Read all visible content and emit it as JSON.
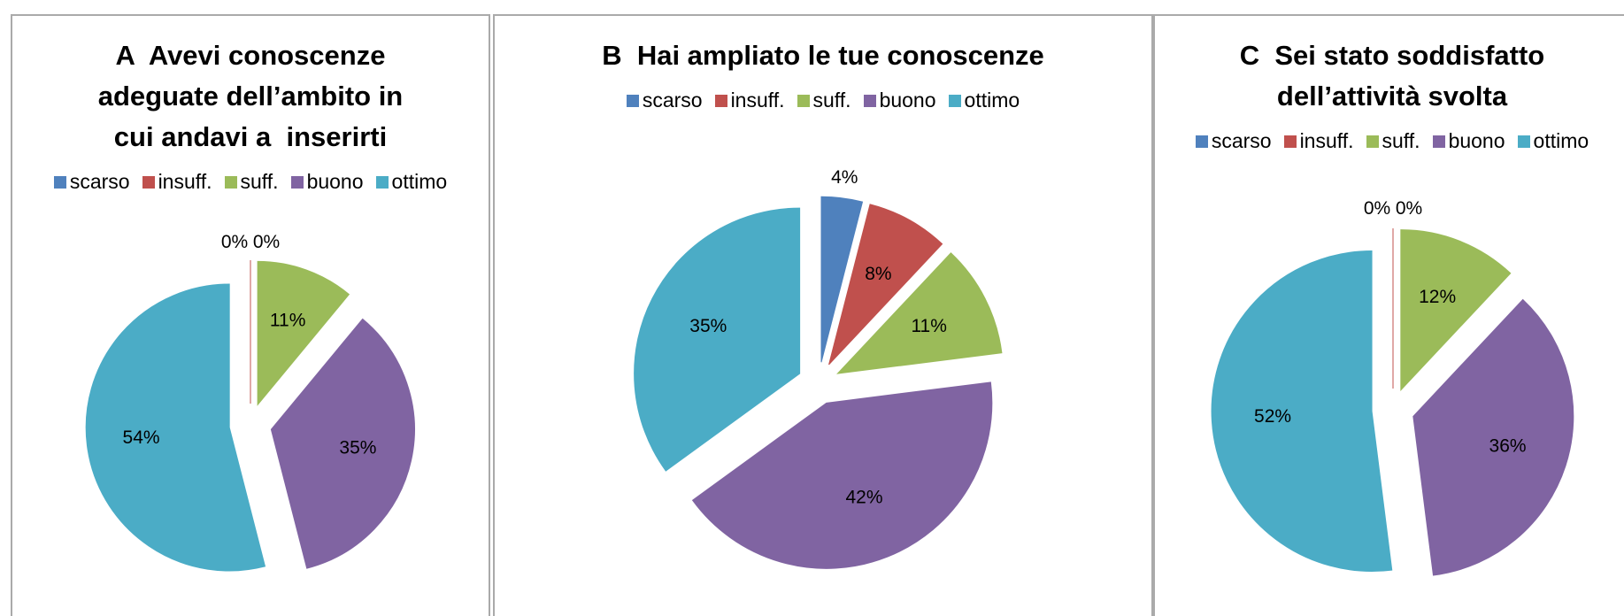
{
  "chart_data": [
    {
      "type": "pie",
      "title": "A  Avevi conoscenze adeguate dell’ambito in cui andavi a  inserirti",
      "categories": [
        "scarso",
        "insuff.",
        "suff.",
        "buono",
        "ottimo"
      ],
      "values": [
        0,
        0,
        11,
        35,
        54
      ],
      "value_labels": [
        "0%",
        "0%",
        "11%",
        "35%",
        "54%"
      ],
      "colors": [
        "#4f81bd",
        "#c0504d",
        "#9bbb59",
        "#8064a2",
        "#4bacc6"
      ]
    },
    {
      "type": "pie",
      "title": "B  Hai ampliato le tue conoscenze",
      "categories": [
        "scarso",
        "insuff.",
        "suff.",
        "buono",
        "ottimo"
      ],
      "values": [
        4,
        8,
        11,
        42,
        35
      ],
      "value_labels": [
        "4%",
        "8%",
        "11%",
        "42%",
        "35%"
      ],
      "colors": [
        "#4f81bd",
        "#c0504d",
        "#9bbb59",
        "#8064a2",
        "#4bacc6"
      ]
    },
    {
      "type": "pie",
      "title": "C  Sei stato soddisfatto dell’attività svolta",
      "categories": [
        "scarso",
        "insuff.",
        "suff.",
        "buono",
        "ottimo"
      ],
      "values": [
        0,
        0,
        12,
        36,
        52
      ],
      "value_labels": [
        "0%",
        "0%",
        "12%",
        "36%",
        "52%"
      ],
      "colors": [
        "#4f81bd",
        "#c0504d",
        "#9bbb59",
        "#8064a2",
        "#4bacc6"
      ]
    }
  ]
}
